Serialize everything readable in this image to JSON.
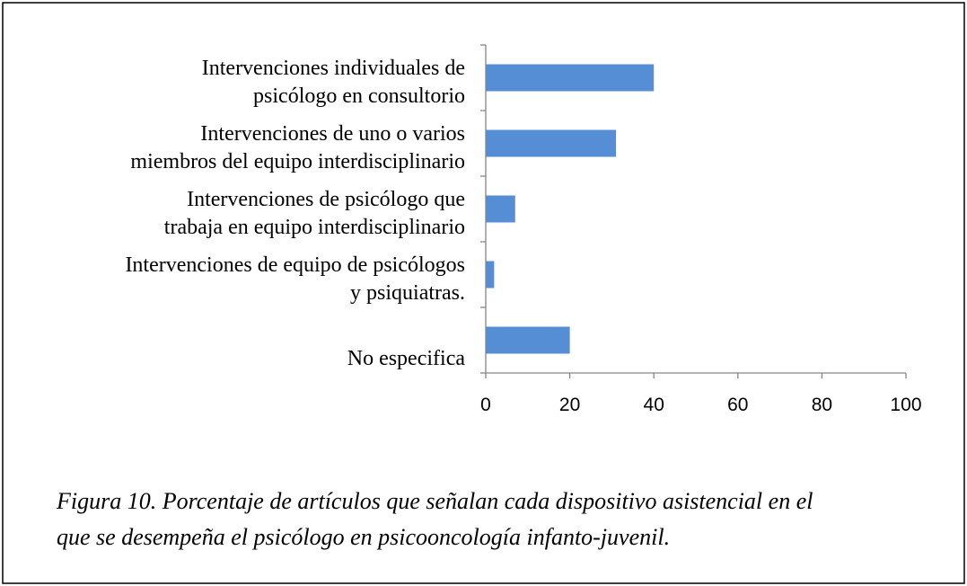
{
  "chart_data": {
    "type": "bar",
    "orientation": "horizontal",
    "categories": [
      "Intervenciones  individuales de\npsicólogo en consultorio",
      "Intervenciones de uno o varios\nmiembros del equipo interdisciplinario",
      "Intervenciones  de psicólogo que\ntrabaja en equipo interdisciplinario",
      "Intervenciones  de equipo de psicólogos\ny psiquiatras.",
      "No especifica"
    ],
    "values": [
      40,
      31,
      7,
      2,
      20
    ],
    "color": "#558ed5",
    "xlim": [
      0,
      100
    ],
    "xticks": [
      0,
      20,
      40,
      60,
      80,
      100
    ],
    "caption": [
      "Figura 10. Porcentaje de artículos que señalan cada dispositivo asistencial en el",
      "que se desempeña el psicólogo en psicooncología infanto-juvenil."
    ]
  }
}
